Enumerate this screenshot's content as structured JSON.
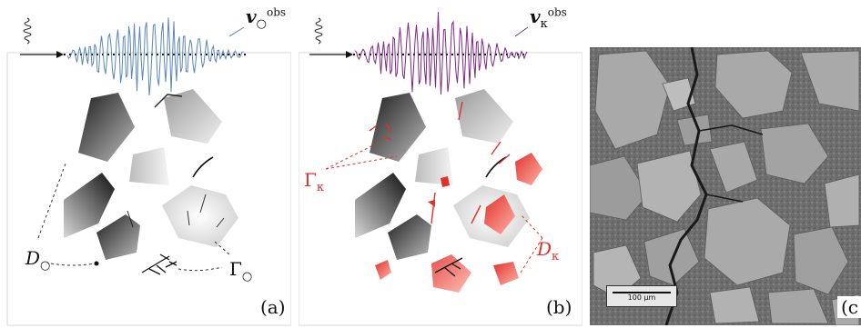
{
  "panels": {
    "a": {
      "tag": "(a)",
      "v_symbol": "v",
      "v_sub": "○",
      "v_sup": "obs",
      "D_label": "D",
      "D_sub": "○",
      "Gamma_label": "Γ",
      "Gamma_sub": "○",
      "trace_color": "#5b86b8"
    },
    "b": {
      "tag": "(b)",
      "v_symbol": "v",
      "v_sub": "κ",
      "v_sup": "obs",
      "D_label": "D",
      "D_sub": "κ",
      "Gamma_label": "Γ",
      "Gamma_sub": "κ",
      "trace_color": "#7d2a86",
      "highlight_color": "#e0312b"
    },
    "c": {
      "tag": "(c",
      "scalebar": "100 μm"
    }
  }
}
